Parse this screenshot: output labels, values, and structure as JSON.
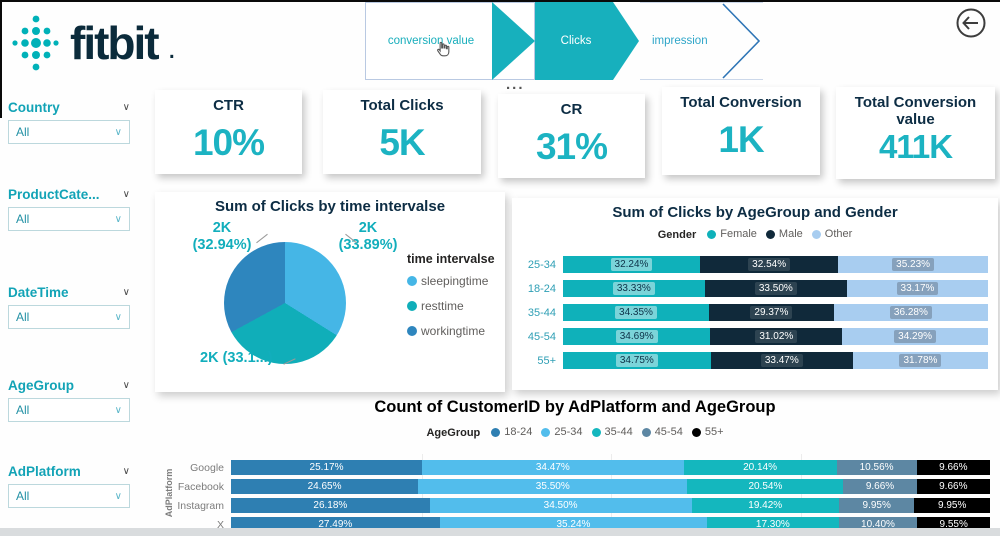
{
  "brand": {
    "wordmark": "fitbit",
    "trademark_dot": ".",
    "logo_color": "#00b1b8",
    "text_color": "#0b2b3b"
  },
  "nav": {
    "items": [
      {
        "label": "conversion value",
        "state": "default"
      },
      {
        "label": "Clicks",
        "state": "selected"
      },
      {
        "label": "impression",
        "state": "outline"
      }
    ],
    "more_label": "...",
    "accent_color": "#17b0bd"
  },
  "filters": [
    {
      "label": "Country",
      "value": "All"
    },
    {
      "label": "ProductCate...",
      "value": "All"
    },
    {
      "label": "DateTime",
      "value": "All"
    },
    {
      "label": "AgeGroup",
      "value": "All"
    },
    {
      "label": "AdPlatform",
      "value": "All"
    }
  ],
  "kpis": [
    {
      "title": "CTR",
      "value": "10%"
    },
    {
      "title": "Total Clicks",
      "value": "5K"
    },
    {
      "title": "CR",
      "value": "31%"
    },
    {
      "title": "Total Conversion",
      "value": "1K"
    },
    {
      "title": "Total Conversion value",
      "value": "411K"
    }
  ],
  "chart_data": [
    {
      "type": "pie",
      "title": "Sum of Clicks by time intervalse",
      "legend_title": "time intervalse",
      "legend_position": "right",
      "slices": [
        {
          "name": "sleepingtime",
          "value_label": "2K",
          "pct": 33.89,
          "pct_label": "(33.89%)",
          "color": "#45b6e6"
        },
        {
          "name": "resttime",
          "value_label": "2K",
          "pct": 33.17,
          "pct_label": "(33.1...)",
          "color": "#10aeb9"
        },
        {
          "name": "workingtime",
          "value_label": "2K",
          "pct": 32.94,
          "pct_label": "(32.94%)",
          "color": "#2e86be"
        }
      ]
    },
    {
      "type": "bar",
      "subtype": "stacked-horizontal-100",
      "title": "Sum of Clicks by AgeGroup and Gender",
      "legend_title": "Gender",
      "legend_position": "top",
      "categories": [
        "25-34",
        "18-24",
        "35-44",
        "45-54",
        "55+"
      ],
      "series": [
        {
          "name": "Female",
          "color": "#0fb1ba",
          "label_text": "#0d3248",
          "label_bg": "rgba(255,255,255,0.45)",
          "values": [
            32.24,
            33.33,
            34.35,
            34.69,
            34.75
          ]
        },
        {
          "name": "Male",
          "color": "#10293a",
          "label_text": "#ffffff",
          "label_bg": "rgba(255,255,255,0.12)",
          "values": [
            32.54,
            33.5,
            29.37,
            31.02,
            33.47
          ]
        },
        {
          "name": "Other",
          "color": "#a8cdf0",
          "label_text": "#ffffff",
          "label_bg": "rgba(106,126,146,0.55)",
          "values": [
            35.23,
            33.17,
            36.28,
            34.29,
            31.78
          ]
        }
      ],
      "value_format": "percent-2dp"
    },
    {
      "type": "bar",
      "subtype": "stacked-horizontal-100",
      "title": "Count of CustomerID by AdPlatform and AgeGroup",
      "legend_title": "AgeGroup",
      "legend_position": "top",
      "ylabel": "AdPlatform",
      "categories": [
        "Google",
        "Facebook",
        "Instagram",
        "X"
      ],
      "series": [
        {
          "name": "18-24",
          "color": "#2e7fb2",
          "label_text": "#ffffff",
          "label_bg": "transparent",
          "values": [
            25.17,
            24.65,
            26.18,
            27.49
          ]
        },
        {
          "name": "25-34",
          "color": "#52bdec",
          "label_text": "#ffffff",
          "label_bg": "transparent",
          "values": [
            34.47,
            35.5,
            34.5,
            35.24
          ]
        },
        {
          "name": "35-44",
          "color": "#14b7be",
          "label_text": "#ffffff",
          "label_bg": "transparent",
          "values": [
            20.14,
            20.54,
            19.42,
            17.3
          ]
        },
        {
          "name": "45-54",
          "color": "#5d87a3",
          "label_text": "#ffffff",
          "label_bg": "transparent",
          "values": [
            10.56,
            9.66,
            9.95,
            10.4
          ]
        },
        {
          "name": "55+",
          "color": "#000000",
          "label_text": "#ffffff",
          "label_bg": "transparent",
          "values": [
            9.66,
            9.66,
            9.95,
            9.55
          ]
        }
      ],
      "value_format": "percent-2dp"
    }
  ]
}
